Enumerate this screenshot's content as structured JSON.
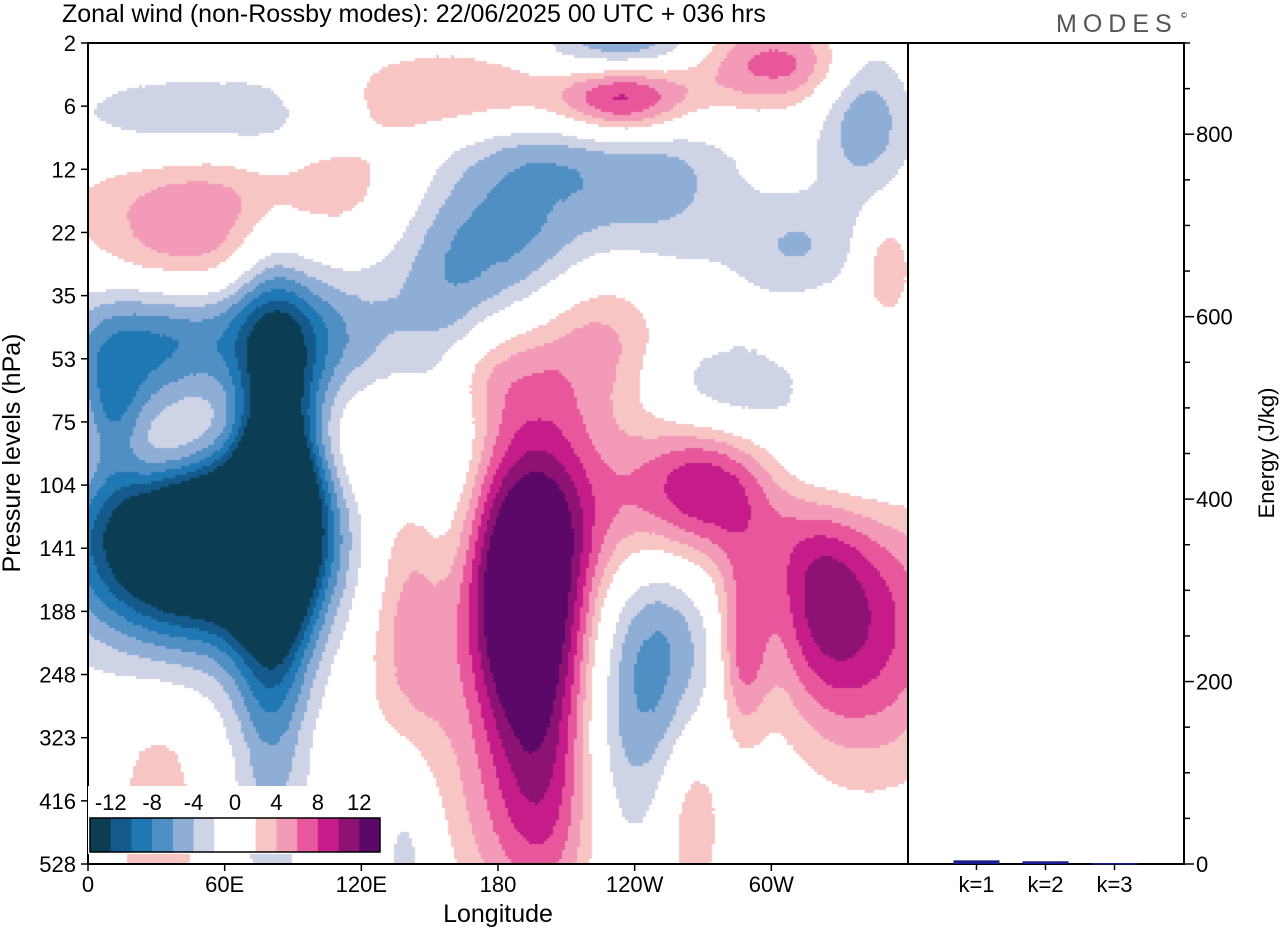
{
  "title": "Zonal wind (non-Rossby modes):  22/06/2025  00 UTC  + 036 hrs",
  "brand": "MODES",
  "brand_mark": "©",
  "chart_data": [
    {
      "type": "heatmap",
      "ylabel": "Pressure levels (hPa)",
      "xlabel": "Longitude",
      "y_ticks": [
        "2",
        "6",
        "12",
        "22",
        "35",
        "53",
        "75",
        "104",
        "141",
        "188",
        "248",
        "323",
        "416",
        "528"
      ],
      "x_ticks": [
        {
          "lon": 0,
          "label": "0"
        },
        {
          "lon": 60,
          "label": "60E"
        },
        {
          "lon": 120,
          "label": "120E"
        },
        {
          "lon": 180,
          "label": "180"
        },
        {
          "lon": 240,
          "label": "120W"
        },
        {
          "lon": 300,
          "label": "60W"
        }
      ],
      "xlim": [
        0,
        360
      ],
      "colorbar": {
        "labels": [
          "-12",
          "-8",
          "-4",
          "0",
          "4",
          "8",
          "12"
        ],
        "label_levels": [
          -12,
          -8,
          -4,
          0,
          4,
          8,
          12
        ],
        "bounds": [
          -14,
          14
        ],
        "colors": [
          "#0b3d55",
          "#145a8c",
          "#1f78b4",
          "#4f8fc4",
          "#8faed6",
          "#cfd3e6",
          "#ffffff",
          "#ffffff",
          "#f7c6c4",
          "#f39ab8",
          "#e8579c",
          "#c51c8a",
          "#8e1274",
          "#5b0868"
        ]
      },
      "field": [
        {
          "lon": 55,
          "lev": 7.2,
          "value": -14,
          "rx": 30,
          "ry": 1.3
        },
        {
          "lon": 40,
          "lev": 7.9,
          "value": -13,
          "rx": 40,
          "ry": 1.1
        },
        {
          "lon": 85,
          "lev": 6.7,
          "value": -11,
          "rx": 14,
          "ry": 1.5
        },
        {
          "lon": 80,
          "lev": 8.0,
          "value": -10,
          "rx": 12,
          "ry": 3.0
        },
        {
          "lon": 65,
          "lev": 1.3,
          "value": -6,
          "rx": 55,
          "ry": 0.6
        },
        {
          "lon": 20,
          "lev": 5.2,
          "value": -6,
          "rx": 25,
          "ry": 1.0
        },
        {
          "lon": 55,
          "lev": 4.5,
          "value": -5,
          "rx": 45,
          "ry": 0.6
        },
        {
          "lon": 10,
          "lev": 6.0,
          "value": -6,
          "rx": 10,
          "ry": 0.8
        },
        {
          "lon": 155,
          "lev": 6.8,
          "value": -5,
          "rx": 14,
          "ry": 2.5
        },
        {
          "lon": 185,
          "lev": 3.0,
          "value": -7,
          "rx": 30,
          "ry": 1.0
        },
        {
          "lon": 200,
          "lev": 1.5,
          "value": -6,
          "rx": 40,
          "ry": 0.6
        },
        {
          "lon": 235,
          "lev": 0.1,
          "value": -9,
          "rx": 25,
          "ry": 0.4
        },
        {
          "lon": 250,
          "lev": 9.5,
          "value": -7,
          "rx": 20,
          "ry": 1.6
        },
        {
          "lon": 305,
          "lev": 6.8,
          "value": -6,
          "rx": 35,
          "ry": 0.7
        },
        {
          "lon": 310,
          "lev": 3.2,
          "value": -4,
          "rx": 20,
          "ry": 0.6
        },
        {
          "lon": 340,
          "lev": 1.0,
          "value": -6,
          "rx": 15,
          "ry": 1.0
        },
        {
          "lon": 250,
          "lev": 2.3,
          "value": -4,
          "rx": 25,
          "ry": 1.0
        },
        {
          "lon": 110,
          "lev": 5.0,
          "value": -4,
          "rx": 25,
          "ry": 1.0
        },
        {
          "lon": 140,
          "lev": 12.5,
          "value": -4,
          "rx": 10,
          "ry": 1.5
        },
        {
          "lon": 230,
          "lev": 12.0,
          "value": -4,
          "rx": 15,
          "ry": 1.5
        },
        {
          "lon": 280,
          "lev": 5.5,
          "value": -4,
          "rx": 25,
          "ry": 0.6
        },
        {
          "lon": 180,
          "lev": 8.8,
          "value": 10,
          "rx": 14,
          "ry": 1.6
        },
        {
          "lon": 200,
          "lev": 9.0,
          "value": 13,
          "rx": 16,
          "ry": 2.2
        },
        {
          "lon": 145,
          "lev": 9.3,
          "value": 8,
          "rx": 14,
          "ry": 1.8
        },
        {
          "lon": 275,
          "lev": 6.9,
          "value": 10,
          "rx": 25,
          "ry": 0.7
        },
        {
          "lon": 255,
          "lev": 7.5,
          "value": 6,
          "rx": 45,
          "ry": 1.0
        },
        {
          "lon": 345,
          "lev": 9.3,
          "value": 8,
          "rx": 25,
          "ry": 1.5
        },
        {
          "lon": 320,
          "lev": 8.8,
          "value": 6,
          "rx": 15,
          "ry": 1.2
        },
        {
          "lon": 287,
          "lev": 9.6,
          "value": 7,
          "rx": 8,
          "ry": 1.0
        },
        {
          "lon": 60,
          "lev": 6.2,
          "value": 10,
          "rx": 45,
          "ry": 0.8
        },
        {
          "lon": 30,
          "lev": 6.6,
          "value": 5,
          "rx": 25,
          "ry": 0.6
        },
        {
          "lon": 80,
          "lev": 2.0,
          "value": 5,
          "rx": 60,
          "ry": 0.7
        },
        {
          "lon": 170,
          "lev": 1.0,
          "value": 7,
          "rx": 50,
          "ry": 0.6
        },
        {
          "lon": 235,
          "lev": 0.8,
          "value": 10,
          "rx": 20,
          "ry": 0.5
        },
        {
          "lon": 300,
          "lev": 0.3,
          "value": 7,
          "rx": 30,
          "ry": 0.5
        },
        {
          "lon": 225,
          "lev": 4.6,
          "value": 5,
          "rx": 20,
          "ry": 1.0
        },
        {
          "lon": 170,
          "lev": 5.2,
          "value": 4,
          "rx": 20,
          "ry": 0.6
        },
        {
          "lon": 40,
          "lev": 3.3,
          "value": 5,
          "rx": 30,
          "ry": 0.8
        },
        {
          "lon": 200,
          "lev": 12.4,
          "value": 5,
          "rx": 30,
          "ry": 1.2
        },
        {
          "lon": 30,
          "lev": 12.5,
          "value": 4,
          "rx": 12,
          "ry": 1.3
        },
        {
          "lon": 350,
          "lev": 3.5,
          "value": 4,
          "rx": 8,
          "ry": 0.6
        },
        {
          "lon": 265,
          "lev": 12.0,
          "value": 4,
          "rx": 10,
          "ry": 1.2
        }
      ]
    },
    {
      "type": "bar",
      "ylabel": "Energy (J/kg)",
      "ylim": [
        0,
        900
      ],
      "y_ticks": [
        0,
        200,
        400,
        600,
        800
      ],
      "categories": [
        "k=1",
        "k=2",
        "k=3"
      ],
      "values": [
        4,
        3,
        1
      ],
      "bar_color": "#1a1a8c"
    }
  ]
}
